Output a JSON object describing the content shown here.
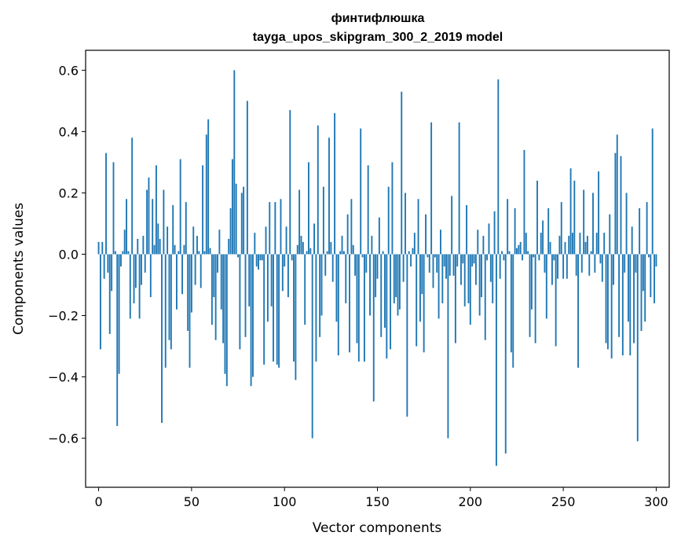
{
  "chart_data": {
    "type": "bar",
    "title": "финтифлюшка",
    "subtitle": "tayga_upos_skipgram_300_2_2019 model",
    "xlabel": "Vector components",
    "ylabel": "Components values",
    "xlim": [
      -7,
      307
    ],
    "ylim": [
      -0.76,
      0.665
    ],
    "xticks": [
      0,
      50,
      100,
      150,
      200,
      250,
      300
    ],
    "yticks": [
      -0.6,
      -0.4,
      -0.2,
      0.0,
      0.2,
      0.4,
      0.6
    ],
    "ytick_labels": [
      "−0.6",
      "−0.4",
      "−0.2",
      "0.0",
      "0.2",
      "0.4",
      "0.6"
    ],
    "grid": false,
    "bar_color": "#1f77b4",
    "values": [
      0.04,
      -0.31,
      0.04,
      -0.08,
      0.33,
      -0.06,
      -0.26,
      -0.12,
      0.3,
      0.01,
      -0.56,
      -0.39,
      -0.04,
      0.01,
      0.08,
      0.18,
      0.01,
      -0.21,
      0.38,
      -0.16,
      -0.11,
      0.05,
      -0.21,
      -0.1,
      0.06,
      -0.06,
      0.21,
      0.25,
      -0.14,
      0.18,
      0.03,
      0.29,
      0.1,
      0.05,
      -0.55,
      0.21,
      -0.37,
      0.09,
      -0.28,
      -0.31,
      0.16,
      0.03,
      -0.18,
      0.01,
      0.31,
      -0.13,
      0.03,
      0.17,
      -0.25,
      -0.37,
      -0.19,
      0.09,
      -0.1,
      0.06,
      0.01,
      -0.11,
      0.29,
      0.01,
      0.39,
      0.44,
      0.02,
      -0.23,
      -0.14,
      -0.28,
      -0.06,
      0.08,
      -0.18,
      -0.29,
      -0.39,
      -0.43,
      0.05,
      0.15,
      0.31,
      0.6,
      0.23,
      -0.01,
      -0.31,
      0.2,
      0.22,
      -0.27,
      0.5,
      -0.17,
      -0.43,
      -0.4,
      0.07,
      -0.04,
      -0.05,
      -0.02,
      -0.02,
      -0.36,
      0.09,
      -0.22,
      0.17,
      -0.17,
      -0.35,
      0.17,
      -0.36,
      -0.37,
      0.18,
      -0.12,
      -0.04,
      0.09,
      -0.14,
      0.47,
      -0.02,
      -0.35,
      -0.41,
      0.03,
      0.21,
      0.06,
      0.04,
      -0.23,
      0.01,
      0.3,
      0.02,
      -0.6,
      0.1,
      -0.35,
      0.42,
      -0.27,
      -0.2,
      0.22,
      -0.07,
      0.01,
      0.38,
      0.04,
      -0.09,
      0.46,
      -0.22,
      -0.33,
      0.01,
      0.06,
      0.01,
      -0.16,
      0.13,
      -0.32,
      0.18,
      0.03,
      -0.07,
      -0.29,
      -0.35,
      0.41,
      -0.01,
      -0.35,
      -0.06,
      0.29,
      -0.2,
      0.06,
      -0.48,
      -0.14,
      -0.08,
      0.12,
      -0.27,
      0.01,
      -0.24,
      -0.34,
      0.22,
      -0.31,
      0.3,
      -0.16,
      -0.14,
      -0.2,
      -0.18,
      0.53,
      -0.09,
      0.2,
      -0.53,
      0.01,
      -0.04,
      0.02,
      0.07,
      -0.3,
      0.18,
      -0.22,
      -0.13,
      -0.32,
      0.13,
      -0.01,
      -0.06,
      0.43,
      -0.11,
      -0.01,
      -0.06,
      -0.21,
      0.08,
      -0.16,
      -0.04,
      -0.08,
      -0.6,
      -0.07,
      0.19,
      -0.07,
      -0.29,
      -0.04,
      0.43,
      -0.1,
      -0.03,
      -0.17,
      0.16,
      -0.16,
      -0.23,
      -0.04,
      -0.03,
      -0.1,
      0.08,
      -0.2,
      -0.14,
      0.06,
      -0.28,
      -0.02,
      0.1,
      -0.09,
      -0.16,
      0.14,
      -0.69,
      0.57,
      -0.08,
      0.01,
      -0.02,
      -0.65,
      0.18,
      0.01,
      -0.32,
      -0.37,
      0.15,
      0.02,
      0.03,
      0.04,
      -0.02,
      0.34,
      0.07,
      0.01,
      -0.27,
      -0.18,
      -0.01,
      -0.29,
      0.24,
      -0.02,
      0.07,
      0.11,
      -0.06,
      -0.21,
      0.15,
      0.04,
      -0.1,
      -0.02,
      -0.3,
      -0.08,
      0.06,
      0.17,
      -0.08,
      0.04,
      -0.08,
      0.06,
      0.28,
      0.07,
      0.24,
      -0.07,
      -0.37,
      0.07,
      -0.06,
      0.21,
      0.04,
      0.06,
      -0.07,
      0.01,
      0.2,
      -0.06,
      0.07,
      0.27,
      -0.03,
      -0.09,
      0.07,
      -0.29,
      -0.31,
      0.13,
      -0.34,
      -0.1,
      0.33,
      0.39,
      -0.27,
      0.32,
      -0.33,
      -0.06,
      0.2,
      -0.22,
      -0.33,
      0.09,
      -0.29,
      -0.06,
      -0.61,
      0.15,
      -0.25,
      -0.12,
      -0.22,
      0.17,
      -0.01,
      -0.14,
      0.41,
      -0.16,
      -0.04
    ]
  }
}
